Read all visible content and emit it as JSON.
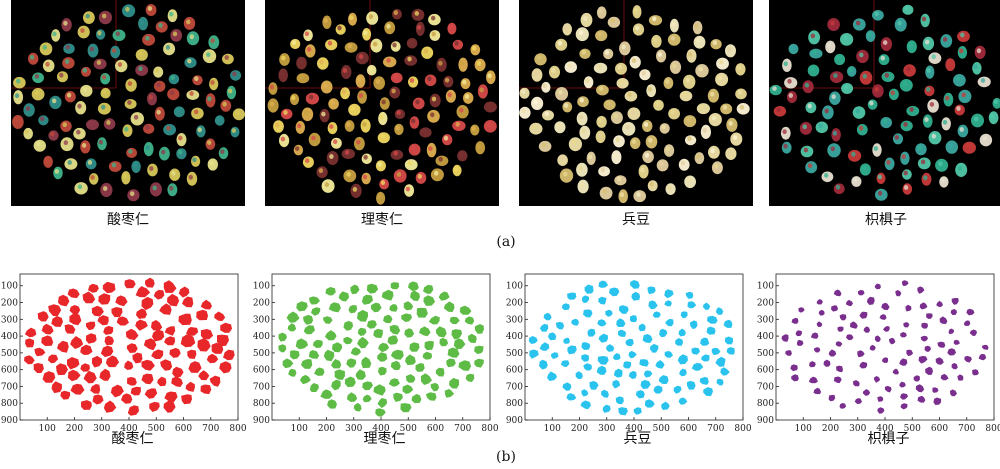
{
  "figure": {
    "label_a": "(a)",
    "label_b": "(b)"
  },
  "panels": [
    {
      "id": "p1",
      "caption": "酸枣仁",
      "color": "#e8272a",
      "seed": 11,
      "count": 120
    },
    {
      "id": "p2",
      "caption": "理枣仁",
      "color": "#5dbb46",
      "seed": 27,
      "count": 110
    },
    {
      "id": "p3",
      "caption": "兵豆",
      "color": "#29c3ee",
      "seed": 43,
      "count": 105
    },
    {
      "id": "p4",
      "caption": "枳椇子",
      "color": "#7a2e8e",
      "seed": 59,
      "count": 95
    }
  ],
  "axes": {
    "x_ticks": [
      "100",
      "200",
      "300",
      "400",
      "500",
      "600",
      "700",
      "800"
    ],
    "y_ticks": [
      "100",
      "200",
      "300",
      "400",
      "500",
      "600",
      "700",
      "800",
      "900"
    ]
  }
}
